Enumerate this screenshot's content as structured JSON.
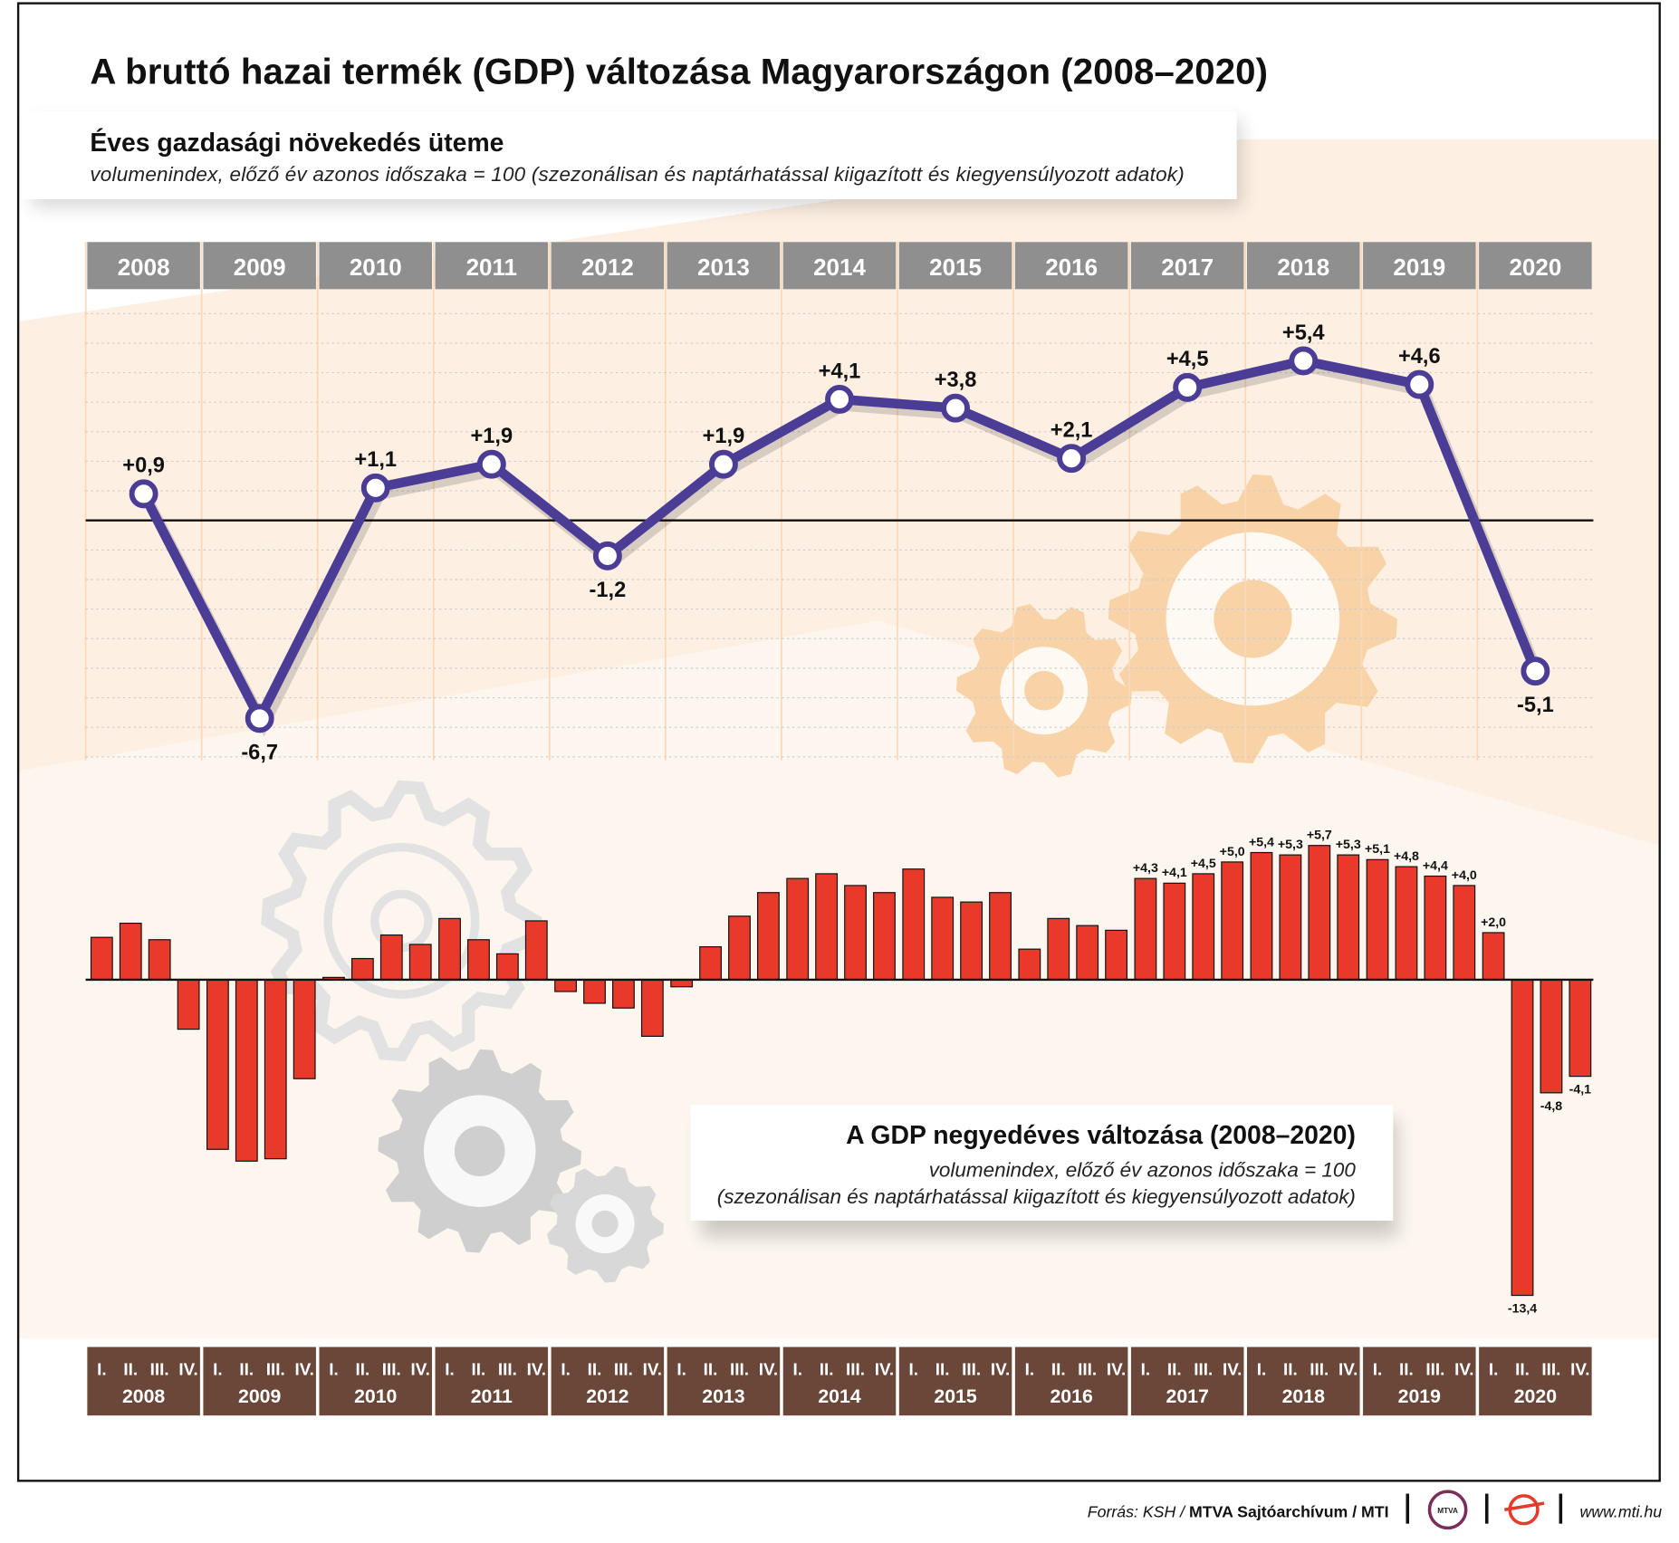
{
  "title": "A bruttó hazai termék (GDP) változása Magyarországon (2008–2020)",
  "footer": {
    "source_prefix": "Forrás: KSH / ",
    "source_bold": "MTVA Sajtóarchívum / MTI",
    "logo1": "MTVA",
    "website": "www.mti.hu"
  },
  "colors": {
    "line": "#4b3c96",
    "bar": "#e8392a",
    "year_header": "#8f8f8f",
    "quarter_band": "#6b4739",
    "peach": "#fde9d6",
    "gear_orange": "#f9d3a8",
    "gear_gray": "#d9d9d9"
  },
  "chart_data": [
    {
      "type": "line",
      "title": "Éves gazdasági növekedés üteme",
      "subtitle": "volumenindex, előző év azonos időszaka = 100 (szezonálisan és naptárhatással kiigazított és kiegyensúlyozott adatok)",
      "categories": [
        "2008",
        "2009",
        "2010",
        "2011",
        "2012",
        "2013",
        "2014",
        "2015",
        "2016",
        "2017",
        "2018",
        "2019",
        "2020"
      ],
      "values": [
        0.9,
        -6.7,
        1.1,
        1.9,
        -1.2,
        1.9,
        4.1,
        3.8,
        2.1,
        4.5,
        5.4,
        4.6,
        -5.1
      ],
      "labels": [
        "+0,9",
        "-6,7",
        "+1,1",
        "+1,9",
        "-1,2",
        "+1,9",
        "+4,1",
        "+3,8",
        "+2,1",
        "+4,5",
        "+5,4",
        "+4,6",
        "-5,1"
      ],
      "ylim": [
        -8,
        8
      ],
      "grid": true
    },
    {
      "type": "bar",
      "title": "A GDP negyedéves változása (2008–2020)",
      "subtitle1": "volumenindex, előző év azonos időszaka = 100",
      "subtitle2": "(szezonálisan és naptárhatással kiigazított és kiegyensúlyozott adatok)",
      "quarters": [
        "I.",
        "II.",
        "III.",
        "IV."
      ],
      "years": [
        "2008",
        "2009",
        "2010",
        "2011",
        "2012",
        "2013",
        "2014",
        "2015",
        "2016",
        "2017",
        "2018",
        "2019",
        "2020"
      ],
      "values": [
        1.8,
        2.4,
        1.7,
        -2.1,
        -7.2,
        -7.7,
        -7.6,
        -4.2,
        0.1,
        0.9,
        1.9,
        1.5,
        2.6,
        1.7,
        1.1,
        2.5,
        -0.5,
        -1.0,
        -1.2,
        -2.4,
        -0.3,
        1.4,
        2.7,
        3.7,
        4.3,
        4.5,
        4.0,
        3.7,
        4.7,
        3.5,
        3.3,
        3.7,
        1.3,
        2.6,
        2.3,
        2.1,
        4.3,
        4.1,
        4.5,
        5.0,
        5.4,
        5.3,
        5.7,
        5.3,
        5.1,
        4.8,
        4.4,
        4.0,
        2.0,
        -13.4,
        -4.8,
        -4.1
      ],
      "labels": [
        null,
        null,
        null,
        null,
        null,
        null,
        null,
        null,
        null,
        null,
        null,
        null,
        null,
        null,
        null,
        null,
        null,
        null,
        null,
        null,
        null,
        null,
        null,
        null,
        null,
        null,
        null,
        null,
        null,
        null,
        null,
        null,
        null,
        null,
        null,
        null,
        "+4,3",
        "+4,1",
        "+4,5",
        "+5,0",
        "+5,4",
        "+5,3",
        "+5,7",
        "+5,3",
        "+5,1",
        "+4,8",
        "+4,4",
        "+4,0",
        "+2,0",
        "-13,4",
        "-4,8",
        "-4,1"
      ]
    }
  ]
}
